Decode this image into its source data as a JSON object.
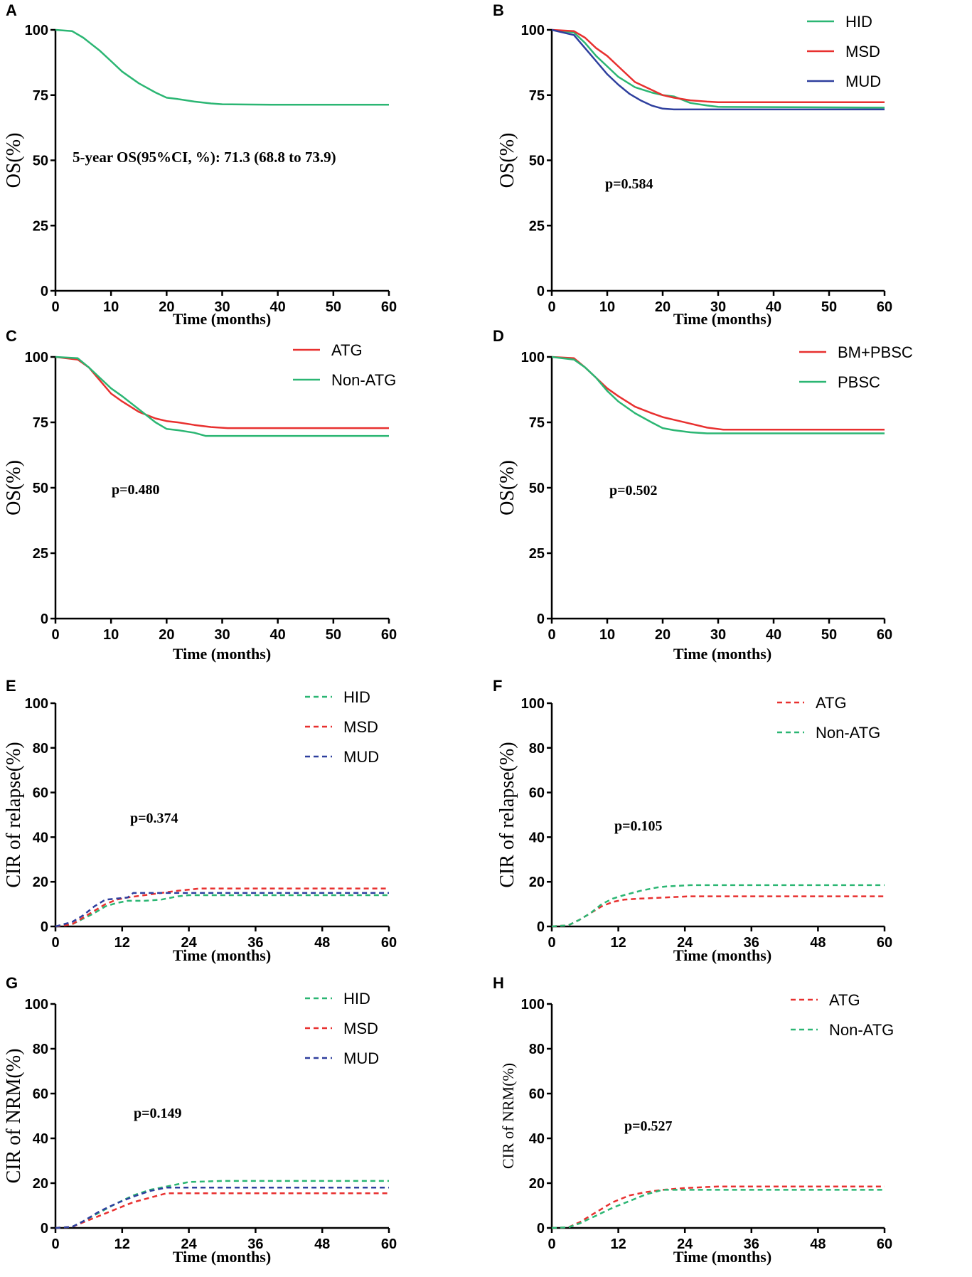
{
  "colors": {
    "green": "#2bb673",
    "red": "#e8302f",
    "blue": "#2e3f9e"
  },
  "chart_data": [
    {
      "panel": "A",
      "type": "line",
      "ylabel": "OS(%)",
      "xlabel": "Time (months)",
      "xlim": [
        0,
        60
      ],
      "ylim": [
        0,
        100
      ],
      "xticks": [
        0,
        10,
        20,
        30,
        40,
        50,
        60
      ],
      "yticks": [
        0,
        25,
        50,
        75,
        100
      ],
      "annotation": "5-year OS(95%CI, %): 71.3 (68.8 to 73.9)",
      "series": [
        {
          "name": "",
          "color": "green",
          "dashed": false,
          "x": [
            0,
            3,
            5,
            8,
            10,
            12,
            15,
            18,
            20,
            22,
            25,
            28,
            30,
            35,
            40,
            50,
            60
          ],
          "y": [
            100,
            99.5,
            97,
            92,
            88,
            84,
            79.5,
            76,
            74,
            73.5,
            72.5,
            71.8,
            71.5,
            71.4,
            71.3,
            71.3,
            71.3
          ]
        }
      ]
    },
    {
      "panel": "B",
      "type": "line",
      "ylabel": "OS(%)",
      "xlabel": "Time (months)",
      "xlim": [
        0,
        60
      ],
      "ylim": [
        0,
        100
      ],
      "xticks": [
        0,
        10,
        20,
        30,
        40,
        50,
        60
      ],
      "yticks": [
        0,
        25,
        50,
        75,
        100
      ],
      "annotation": "p=0.584",
      "series": [
        {
          "name": "HID",
          "color": "green",
          "dashed": false,
          "x": [
            0,
            4,
            6,
            8,
            10,
            12,
            15,
            18,
            20,
            22,
            25,
            28,
            30,
            60
          ],
          "y": [
            100,
            99,
            95,
            90,
            86,
            82,
            78,
            76,
            75,
            74.5,
            72,
            71,
            70.5,
            70.2
          ]
        },
        {
          "name": "MSD",
          "color": "red",
          "dashed": false,
          "x": [
            0,
            4,
            6,
            8,
            10,
            12,
            15,
            18,
            20,
            22,
            25,
            28,
            30,
            60
          ],
          "y": [
            100,
            99.5,
            97,
            93,
            90,
            86,
            80,
            77,
            75,
            74,
            73,
            72.5,
            72.3,
            72.3
          ]
        },
        {
          "name": "MUD",
          "color": "blue",
          "dashed": false,
          "x": [
            0,
            4,
            6,
            8,
            10,
            12,
            14,
            16,
            18,
            20,
            22,
            25,
            60
          ],
          "y": [
            100,
            98,
            93,
            88,
            83,
            79,
            75.5,
            73,
            71,
            69.8,
            69.5,
            69.5,
            69.5
          ]
        }
      ]
    },
    {
      "panel": "C",
      "type": "line",
      "ylabel": "OS(%)",
      "xlabel": "Time (months)",
      "xlim": [
        0,
        60
      ],
      "ylim": [
        0,
        100
      ],
      "xticks": [
        0,
        10,
        20,
        30,
        40,
        50,
        60
      ],
      "yticks": [
        0,
        25,
        50,
        75,
        100
      ],
      "annotation": "p=0.480",
      "series": [
        {
          "name": "ATG",
          "color": "red",
          "dashed": false,
          "x": [
            0,
            4,
            6,
            8,
            10,
            12,
            15,
            18,
            20,
            22,
            25,
            28,
            31,
            60
          ],
          "y": [
            100,
            99,
            96,
            91,
            86,
            83,
            79,
            76.5,
            75.5,
            75,
            74,
            73.2,
            72.8,
            72.8
          ]
        },
        {
          "name": "Non-ATG",
          "color": "green",
          "dashed": false,
          "x": [
            0,
            4,
            6,
            8,
            10,
            12,
            15,
            18,
            20,
            22,
            25,
            27,
            60
          ],
          "y": [
            100,
            99.5,
            96,
            92,
            88,
            85,
            80,
            75,
            72.5,
            72,
            71,
            69.8,
            69.8
          ]
        }
      ]
    },
    {
      "panel": "D",
      "type": "line",
      "ylabel": "OS(%)",
      "xlabel": "Time (months)",
      "xlim": [
        0,
        60
      ],
      "ylim": [
        0,
        100
      ],
      "xticks": [
        0,
        10,
        20,
        30,
        40,
        50,
        60
      ],
      "yticks": [
        0,
        25,
        50,
        75,
        100
      ],
      "annotation": "p=0.502",
      "series": [
        {
          "name": "BM+PBSC",
          "color": "red",
          "dashed": false,
          "x": [
            0,
            4,
            6,
            8,
            10,
            12,
            15,
            18,
            20,
            22,
            25,
            28,
            31,
            60
          ],
          "y": [
            100,
            99.5,
            96,
            92,
            88,
            85,
            81,
            78.5,
            77,
            76,
            74.5,
            73,
            72.2,
            72.2
          ]
        },
        {
          "name": "PBSC",
          "color": "green",
          "dashed": false,
          "x": [
            0,
            4,
            6,
            8,
            10,
            12,
            15,
            18,
            20,
            22,
            25,
            28,
            60
          ],
          "y": [
            100,
            99,
            96,
            92,
            87,
            83,
            78.5,
            75,
            72.8,
            72,
            71.2,
            70.8,
            70.8
          ]
        }
      ]
    },
    {
      "panel": "E",
      "type": "line",
      "ylabel": "CIR of relapse(%)",
      "xlabel": "Time (months)",
      "xlim": [
        0,
        60
      ],
      "ylim": [
        0,
        100
      ],
      "xticks": [
        0,
        12,
        24,
        36,
        48,
        60
      ],
      "yticks": [
        0,
        20,
        40,
        60,
        80,
        100
      ],
      "annotation": "p=0.374",
      "series": [
        {
          "name": "HID",
          "color": "green",
          "dashed": true,
          "x": [
            0,
            3,
            5,
            7,
            9,
            11,
            13,
            16,
            19,
            22,
            24,
            60
          ],
          "y": [
            0,
            1,
            3.5,
            6,
            9,
            10.5,
            11.5,
            11.5,
            12,
            13.5,
            14,
            14
          ]
        },
        {
          "name": "MSD",
          "color": "red",
          "dashed": true,
          "x": [
            0,
            3,
            5,
            7,
            9,
            11,
            13,
            16,
            19,
            22,
            26,
            60
          ],
          "y": [
            0,
            1,
            4,
            7,
            10,
            12,
            13,
            14,
            15,
            16,
            17,
            17
          ]
        },
        {
          "name": "MUD",
          "color": "blue",
          "dashed": true,
          "x": [
            0,
            3,
            5,
            7,
            9,
            11,
            13,
            14,
            16,
            60
          ],
          "y": [
            0,
            2,
            5,
            9,
            12,
            12.5,
            13,
            15,
            15,
            15
          ]
        }
      ]
    },
    {
      "panel": "F",
      "type": "line",
      "ylabel": "CIR of relapse(%)",
      "xlabel": "Time (months)",
      "xlim": [
        0,
        60
      ],
      "ylim": [
        0,
        100
      ],
      "xticks": [
        0,
        12,
        24,
        36,
        48,
        60
      ],
      "yticks": [
        0,
        20,
        40,
        60,
        80,
        100
      ],
      "annotation": "p=0.105",
      "series": [
        {
          "name": "ATG",
          "color": "red",
          "dashed": true,
          "x": [
            0,
            3,
            5,
            7,
            9,
            11,
            13,
            16,
            19,
            22,
            25,
            60
          ],
          "y": [
            0,
            0.5,
            3,
            6,
            9,
            11,
            12,
            12.5,
            12.8,
            13.2,
            13.5,
            13.5
          ]
        },
        {
          "name": "Non-ATG",
          "color": "green",
          "dashed": true,
          "x": [
            0,
            3,
            5,
            7,
            9,
            11,
            13,
            16,
            19,
            21,
            25,
            60
          ],
          "y": [
            0,
            0.5,
            3,
            6,
            10,
            12.5,
            14,
            16,
            17.5,
            18,
            18.5,
            18.5
          ]
        }
      ]
    },
    {
      "panel": "G",
      "type": "line",
      "ylabel": "CIR of NRM(%)",
      "xlabel": "Time (months)",
      "xlim": [
        0,
        60
      ],
      "ylim": [
        0,
        100
      ],
      "xticks": [
        0,
        12,
        24,
        36,
        48,
        60
      ],
      "yticks": [
        0,
        20,
        40,
        60,
        80,
        100
      ],
      "annotation": "p=0.149",
      "series": [
        {
          "name": "HID",
          "color": "green",
          "dashed": true,
          "x": [
            0,
            3,
            5,
            8,
            11,
            14,
            17,
            20,
            24,
            30,
            60
          ],
          "y": [
            0,
            0.5,
            3,
            7,
            11,
            14.5,
            17,
            18.5,
            20.5,
            21,
            21
          ]
        },
        {
          "name": "MSD",
          "color": "red",
          "dashed": true,
          "x": [
            0,
            3,
            5,
            8,
            11,
            14,
            17,
            20,
            21,
            60
          ],
          "y": [
            0,
            0.5,
            2.5,
            5.5,
            8.5,
            11.5,
            13.5,
            15.5,
            15.5,
            15.5
          ]
        },
        {
          "name": "MUD",
          "color": "blue",
          "dashed": true,
          "x": [
            0,
            3,
            5,
            8,
            11,
            14,
            17,
            20,
            60
          ],
          "y": [
            0,
            0.5,
            3,
            7.5,
            11,
            14,
            16.5,
            18,
            18
          ]
        }
      ]
    },
    {
      "panel": "H",
      "type": "line",
      "ylabel": "CIR of NRM(%)",
      "xlabel": "Time (months)",
      "xlim": [
        0,
        60
      ],
      "ylim": [
        0,
        100
      ],
      "xticks": [
        0,
        12,
        24,
        36,
        48,
        60
      ],
      "yticks": [
        0,
        20,
        40,
        60,
        80,
        100
      ],
      "annotation": "p=0.527",
      "series": [
        {
          "name": "ATG",
          "color": "red",
          "dashed": true,
          "x": [
            0,
            3,
            5,
            8,
            11,
            14,
            17,
            20,
            24,
            30,
            60
          ],
          "y": [
            0,
            0.3,
            2.5,
            7,
            11.5,
            14.5,
            16,
            17,
            17.8,
            18.5,
            18.5
          ]
        },
        {
          "name": "Non-ATG",
          "color": "green",
          "dashed": true,
          "x": [
            0,
            3,
            5,
            8,
            11,
            14,
            17,
            20,
            24,
            60
          ],
          "y": [
            0,
            0.3,
            2,
            5.5,
            9,
            12,
            15,
            17,
            17,
            17
          ]
        }
      ]
    }
  ]
}
